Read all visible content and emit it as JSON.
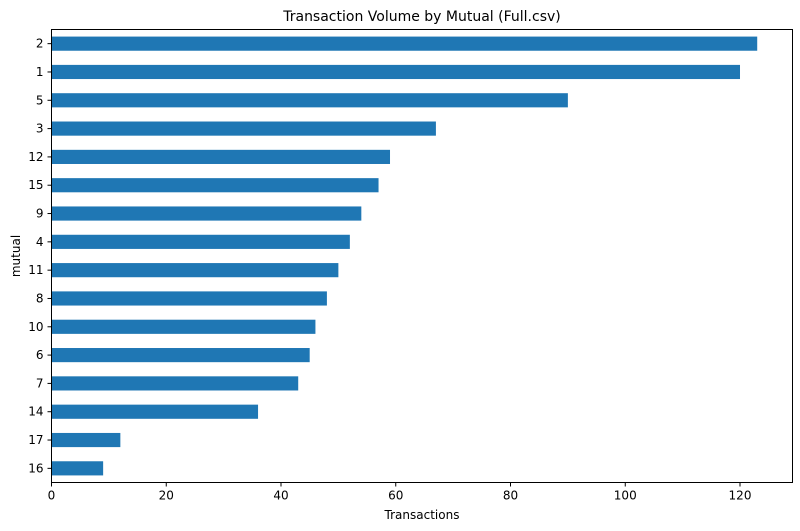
{
  "chart_data": {
    "type": "bar",
    "orientation": "horizontal",
    "title": "Transaction Volume by Mutual (Full.csv)",
    "xlabel": "Transactions",
    "ylabel": "mutual",
    "xlim": [
      0,
      129.15
    ],
    "xticks": [
      0,
      20,
      40,
      60,
      80,
      100,
      120
    ],
    "categories": [
      "2",
      "1",
      "5",
      "3",
      "12",
      "15",
      "9",
      "4",
      "11",
      "8",
      "10",
      "6",
      "7",
      "14",
      "17",
      "16"
    ],
    "values": [
      123,
      120,
      90,
      67,
      59,
      57,
      54,
      52,
      50,
      48,
      46,
      45,
      43,
      36,
      12,
      9
    ],
    "bar_color": "#1f77b4",
    "grid": false,
    "legend": "none"
  }
}
